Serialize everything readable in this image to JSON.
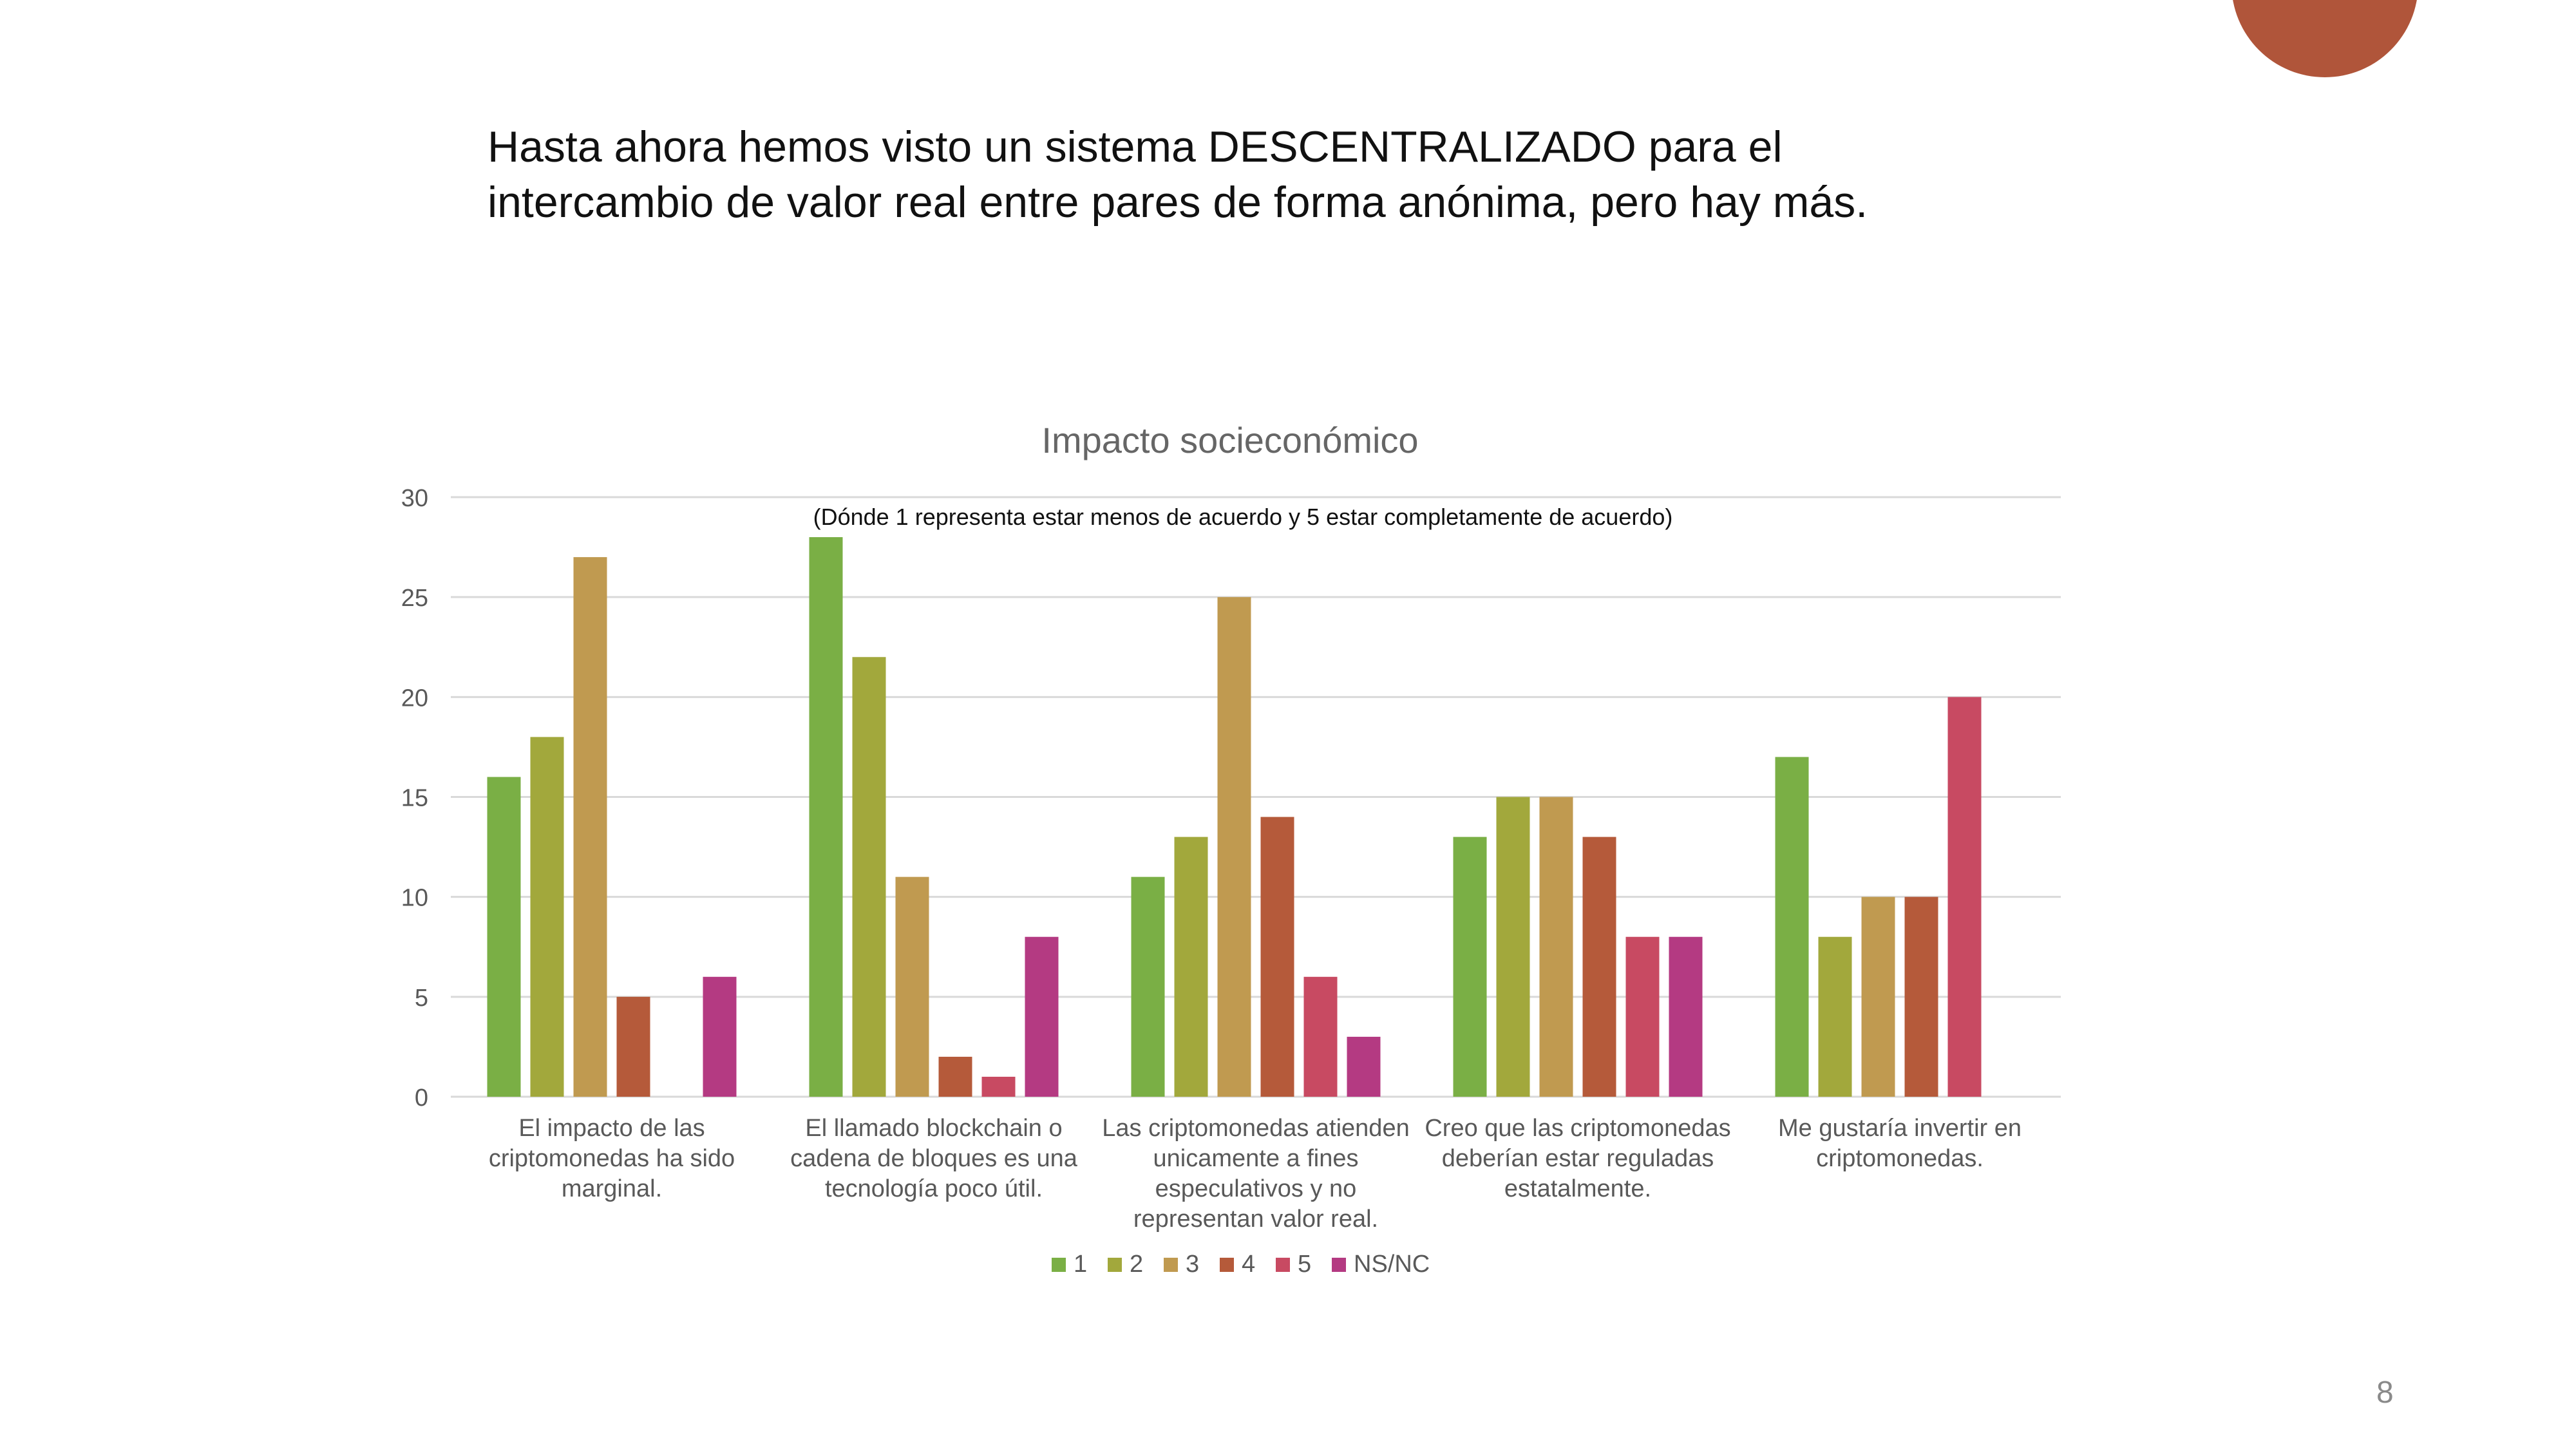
{
  "slide": {
    "body_line_1": "Hasta ahora hemos visto un sistema DESCENTRALIZADO para el",
    "body_line_2": "intercambio de valor real entre pares de forma anónima, pero hay más.",
    "page_number": "8",
    "accent_color": "#B0553A"
  },
  "chart_data": {
    "type": "bar",
    "title": "Impacto socieconómico",
    "subtitle": "(Dónde 1 representa estar menos de acuerdo y 5 estar completamente de acuerdo)",
    "xlabel": "",
    "ylabel": "",
    "ylim": [
      0,
      30
    ],
    "yticks": [
      "0",
      "5",
      "10",
      "15",
      "20",
      "25",
      "30"
    ],
    "grid": true,
    "legend_position": "bottom",
    "categories": [
      [
        "El impacto de las",
        "criptomonedas ha sido",
        "marginal."
      ],
      [
        "El llamado blockchain o",
        "cadena de bloques es una",
        "tecnología poco útil."
      ],
      [
        "Las criptomonedas atienden",
        "unicamente a fines",
        "especulativos y no",
        "representan valor real."
      ],
      [
        "Creo que las criptomonedas",
        "deberían estar reguladas",
        "estatalmente."
      ],
      [
        "Me gustaría invertir en",
        "criptomonedas."
      ]
    ],
    "series": [
      {
        "name": "1",
        "color": "#7AAF45",
        "values": [
          16,
          28,
          11,
          13,
          17
        ]
      },
      {
        "name": "2",
        "color": "#A2A83C",
        "values": [
          18,
          22,
          13,
          15,
          8
        ]
      },
      {
        "name": "3",
        "color": "#C09A50",
        "values": [
          27,
          11,
          25,
          15,
          10
        ]
      },
      {
        "name": "4",
        "color": "#B55A3A",
        "values": [
          5,
          2,
          14,
          13,
          10
        ]
      },
      {
        "name": "5",
        "color": "#C84A62",
        "values": [
          0,
          1,
          6,
          8,
          20
        ]
      },
      {
        "name": "NS/NC",
        "color": "#B43A82",
        "values": [
          6,
          8,
          3,
          8,
          0
        ]
      }
    ]
  }
}
